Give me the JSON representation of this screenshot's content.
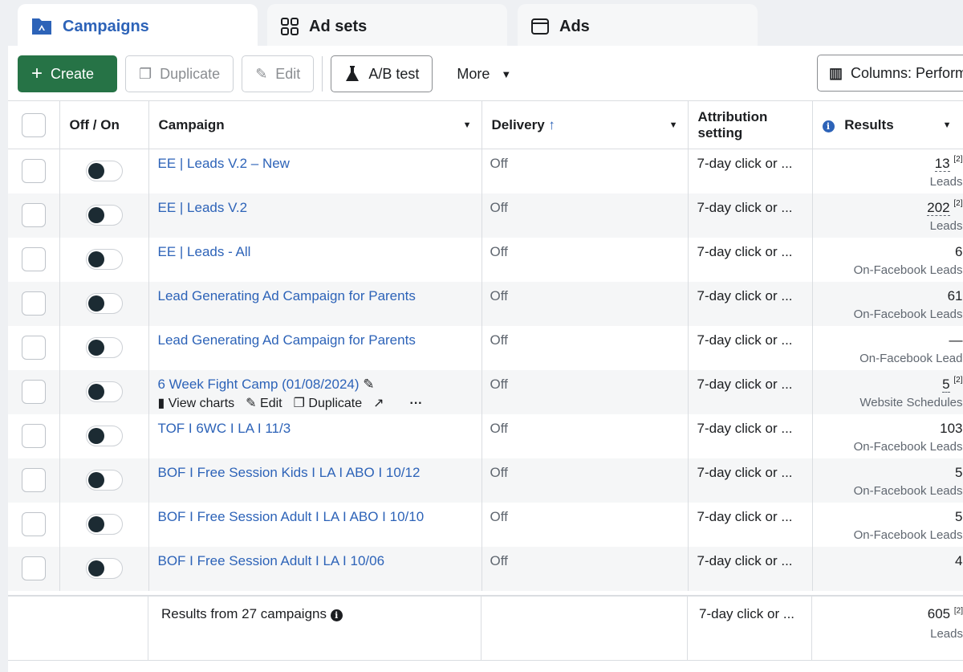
{
  "tabs": [
    {
      "label": "Campaigns",
      "icon": "campaign-folder-icon",
      "active": true
    },
    {
      "label": "Ad sets",
      "icon": "grid-icon"
    },
    {
      "label": "Ads",
      "icon": "window-icon"
    }
  ],
  "toolbar": {
    "create": "Create",
    "duplicate": "Duplicate",
    "edit": "Edit",
    "ab_test": "A/B test",
    "more": "More",
    "columns": "Columns: Performance"
  },
  "headers": {
    "off_on": "Off / On",
    "campaign": "Campaign",
    "delivery": "Delivery",
    "attribution": "Attribution setting",
    "results": "Results"
  },
  "row_actions": {
    "view_charts": "View charts",
    "edit": "Edit",
    "duplicate": "Duplicate"
  },
  "rows": [
    {
      "name": "EE | Leads V.2 – New",
      "delivery": "Off",
      "attribution": "7-day click or ...",
      "result": "13",
      "note": "[2]",
      "result_type": "Leads"
    },
    {
      "name": "EE | Leads V.2",
      "delivery": "Off",
      "attribution": "7-day click or ...",
      "result": "202",
      "note": "[2]",
      "result_type": "Leads"
    },
    {
      "name": "EE | Leads - All",
      "delivery": "Off",
      "attribution": "7-day click or ...",
      "result": "6",
      "result_type": "On-Facebook Leads"
    },
    {
      "name": "Lead Generating Ad Campaign for Parents",
      "delivery": "Off",
      "attribution": "7-day click or ...",
      "result": "61",
      "result_type": "On-Facebook Leads"
    },
    {
      "name": "Lead Generating Ad Campaign for Parents",
      "delivery": "Off",
      "attribution": "7-day click or ...",
      "result": "—",
      "result_type": "On-Facebook Lead"
    },
    {
      "name": "6 Week Fight Camp (01/08/2024)",
      "delivery": "Off",
      "attribution": "7-day click or ...",
      "result": "5",
      "note": "[2]",
      "result_type": "Website Schedules"
    },
    {
      "name": "TOF I 6WC I LA I 11/3",
      "delivery": "Off",
      "attribution": "7-day click or ...",
      "result": "103",
      "result_type": "On-Facebook Leads"
    },
    {
      "name": "BOF I Free Session Kids I LA I ABO I 10/12",
      "delivery": "Off",
      "attribution": "7-day click or ...",
      "result": "5",
      "result_type": "On-Facebook Leads"
    },
    {
      "name": "BOF I Free Session Adult I LA I ABO I 10/10",
      "delivery": "Off",
      "attribution": "7-day click or ...",
      "result": "5",
      "result_type": "On-Facebook Leads"
    },
    {
      "name": "BOF I Free Session Adult I LA I 10/06",
      "delivery": "Off",
      "attribution": "7-day click or ...",
      "result": "4",
      "result_type": ""
    }
  ],
  "footer": {
    "summary": "Results from 27 campaigns",
    "attribution": "7-day click or ...",
    "result": "605",
    "note": "[2]",
    "result_type": "Leads"
  }
}
